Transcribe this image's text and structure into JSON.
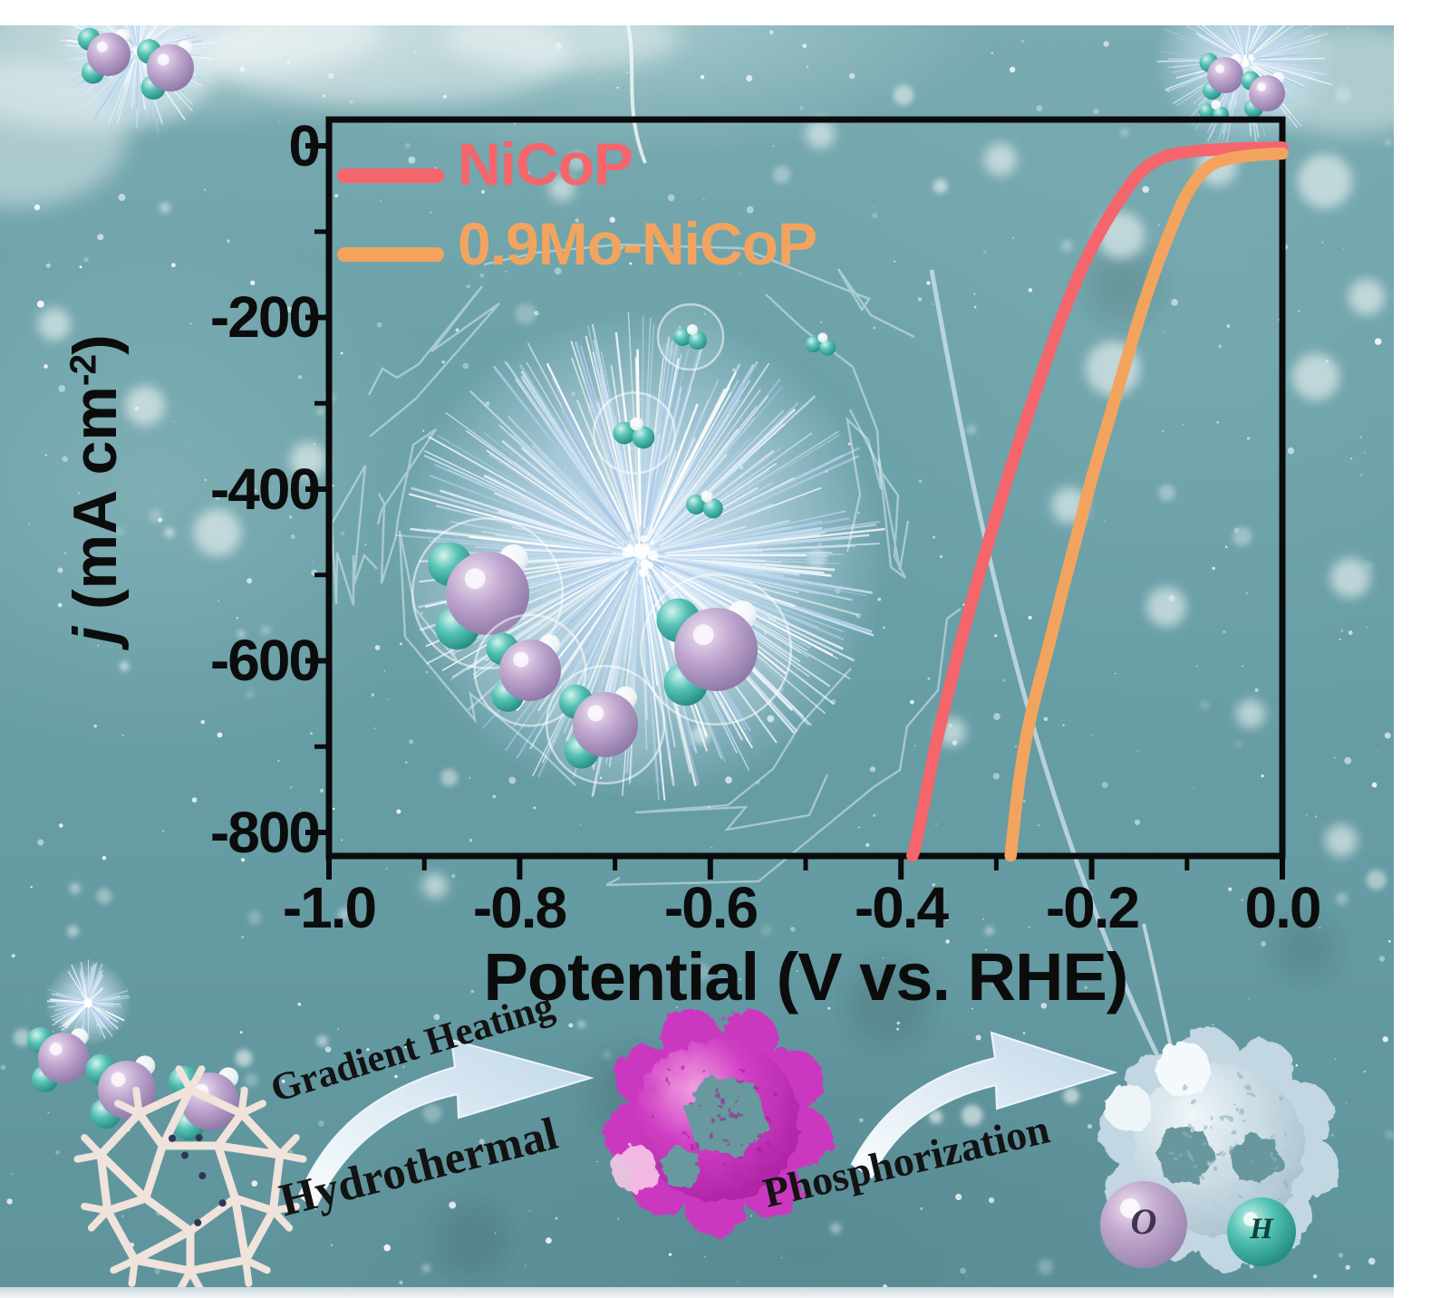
{
  "figure": {
    "kind": "graphical-abstract",
    "background_color": "#6ba1a8",
    "margin_color": "#ffffff"
  },
  "chart_data": {
    "type": "line",
    "title": "",
    "xlabel": "Potential (V vs. RHE)",
    "ylabel": "j (mA cm⁻²)",
    "ylabel_parts": {
      "italic": "j",
      "pre": " (mA cm",
      "sup": "-2",
      "post": ")"
    },
    "xlim": [
      -1.0,
      0.0
    ],
    "ylim": [
      -850,
      0
    ],
    "grid": false,
    "legend_position": "top-left",
    "x_ticks": [
      -1.0,
      -0.8,
      -0.6,
      -0.4,
      -0.2,
      0.0
    ],
    "x_tick_labels": [
      "-1.0",
      "-0.8",
      "-0.6",
      "-0.4",
      "-0.2",
      "0.0"
    ],
    "x_minor_ticks": [
      -0.9,
      -0.7,
      -0.5,
      -0.3,
      -0.1
    ],
    "y_ticks": [
      0,
      -200,
      -400,
      -600,
      -800
    ],
    "y_tick_labels": [
      "0",
      "-200",
      "-400",
      "-600",
      "-800"
    ],
    "y_minor_ticks": [
      -100,
      -300,
      -500,
      -700
    ],
    "series": [
      {
        "name": "NiCoP",
        "color": "#f4656c",
        "points": [
          [
            0,
            -2
          ],
          [
            -0.04,
            -3
          ],
          [
            -0.08,
            -5
          ],
          [
            -0.11,
            -9
          ],
          [
            -0.13,
            -16
          ],
          [
            -0.15,
            -32
          ],
          [
            -0.17,
            -62
          ],
          [
            -0.19,
            -98
          ],
          [
            -0.21,
            -142
          ],
          [
            -0.23,
            -196
          ],
          [
            -0.25,
            -258
          ],
          [
            -0.27,
            -324
          ],
          [
            -0.29,
            -394
          ],
          [
            -0.31,
            -468
          ],
          [
            -0.33,
            -548
          ],
          [
            -0.345,
            -612
          ],
          [
            -0.355,
            -658
          ],
          [
            -0.365,
            -706
          ],
          [
            -0.375,
            -762
          ],
          [
            -0.385,
            -816
          ],
          [
            -0.388,
            -827
          ]
        ]
      },
      {
        "name": "0.9Mo-NiCoP",
        "color": "#f2a45f",
        "points": [
          [
            0,
            -9
          ],
          [
            -0.03,
            -11
          ],
          [
            -0.06,
            -16
          ],
          [
            -0.08,
            -27
          ],
          [
            -0.1,
            -56
          ],
          [
            -0.12,
            -106
          ],
          [
            -0.14,
            -166
          ],
          [
            -0.16,
            -236
          ],
          [
            -0.18,
            -312
          ],
          [
            -0.2,
            -388
          ],
          [
            -0.215,
            -452
          ],
          [
            -0.23,
            -516
          ],
          [
            -0.245,
            -582
          ],
          [
            -0.26,
            -646
          ],
          [
            -0.268,
            -686
          ],
          [
            -0.275,
            -732
          ],
          [
            -0.28,
            -776
          ],
          [
            -0.285,
            -827
          ]
        ]
      }
    ]
  },
  "process": {
    "labels": {
      "arrow1_top": "Gradient Heating",
      "arrow1_bottom": "Hydrothermal",
      "arrow2": "Phosphorization"
    },
    "icons": [
      "mof-cage-icon",
      "curved-arrow-icon",
      "magenta-microgear-icon",
      "curved-arrow-icon",
      "phosphide-microgear-icon"
    ]
  },
  "atom_legend": [
    {
      "symbol": "O",
      "color": "#b9a3c9"
    },
    {
      "symbol": "H",
      "color": "#46b9ac"
    }
  ]
}
